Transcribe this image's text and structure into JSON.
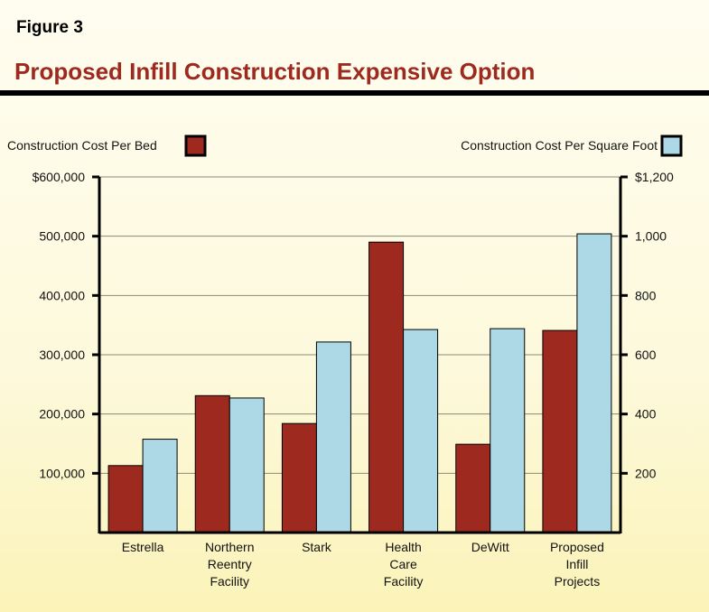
{
  "figure_label": "Figure 3",
  "title": "Proposed Infill Construction Expensive Option",
  "chart_data": {
    "type": "bar",
    "categories": [
      "Estrella",
      "Northern Reentry Facility",
      "Stark",
      "Health Care Facility",
      "DeWitt",
      "Proposed Infill Projects"
    ],
    "category_lines": [
      [
        "Estrella"
      ],
      [
        "Northern",
        "Reentry",
        "Facility"
      ],
      [
        "Stark"
      ],
      [
        "Health",
        "Care",
        "Facility"
      ],
      [
        "DeWitt"
      ],
      [
        "Proposed",
        "Infill",
        "Projects"
      ]
    ],
    "series": [
      {
        "name": "Construction Cost Per Bed",
        "axis": "left",
        "color": "#9e2a1f",
        "values": [
          113000,
          231000,
          184000,
          490000,
          149000,
          341000
        ]
      },
      {
        "name": "Construction Cost Per Square Foot",
        "axis": "right",
        "color": "#add8e6",
        "values": [
          315,
          454,
          643,
          685,
          688,
          1008
        ]
      }
    ],
    "left_axis": {
      "ylim": [
        0,
        600000
      ],
      "ticks": [
        "100,000",
        "200,000",
        "300,000",
        "400,000",
        "500,000",
        "$600,000"
      ]
    },
    "right_axis": {
      "ylim": [
        0,
        1200
      ],
      "ticks": [
        "200",
        "400",
        "600",
        "800",
        "1,000",
        "$1,200"
      ]
    },
    "grid": true,
    "legend_placement": "top"
  }
}
